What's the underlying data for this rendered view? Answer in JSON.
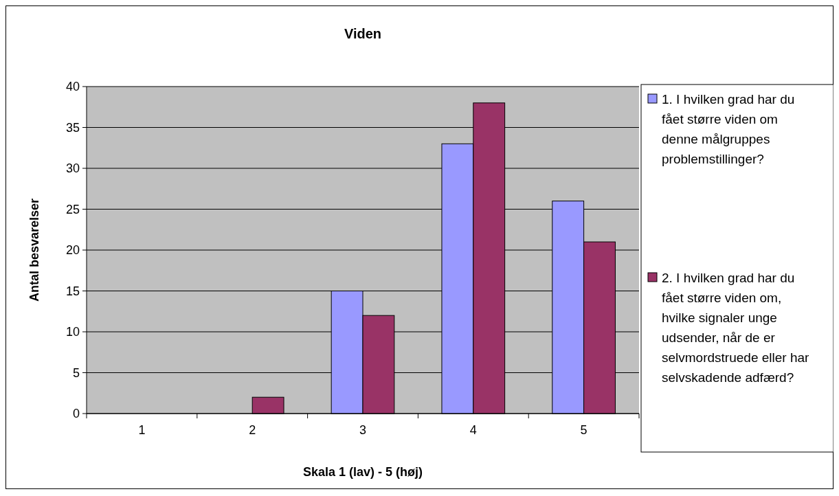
{
  "chart_data": {
    "type": "bar",
    "title": "Viden",
    "xlabel": "Skala 1 (lav) - 5 (høj)",
    "ylabel": "Antal besvarelser",
    "categories": [
      "1",
      "2",
      "3",
      "4",
      "5"
    ],
    "series": [
      {
        "name": "1. I hvilken grad har du fået større viden om denne målgruppes problemstillinger?",
        "color": "#9999ff",
        "values": [
          0,
          0,
          15,
          33,
          26
        ]
      },
      {
        "name": "2. I hvilken grad har du fået større viden om, hvilke signaler unge udsender, når de er selvmordstruede eller har selvskadende adfærd?",
        "color": "#993366",
        "values": [
          0,
          2,
          12,
          38,
          21
        ]
      }
    ],
    "ylim": [
      0,
      40
    ],
    "yticks": [
      0,
      5,
      10,
      15,
      20,
      25,
      30,
      35,
      40
    ],
    "grid": "y",
    "legend": "right"
  }
}
